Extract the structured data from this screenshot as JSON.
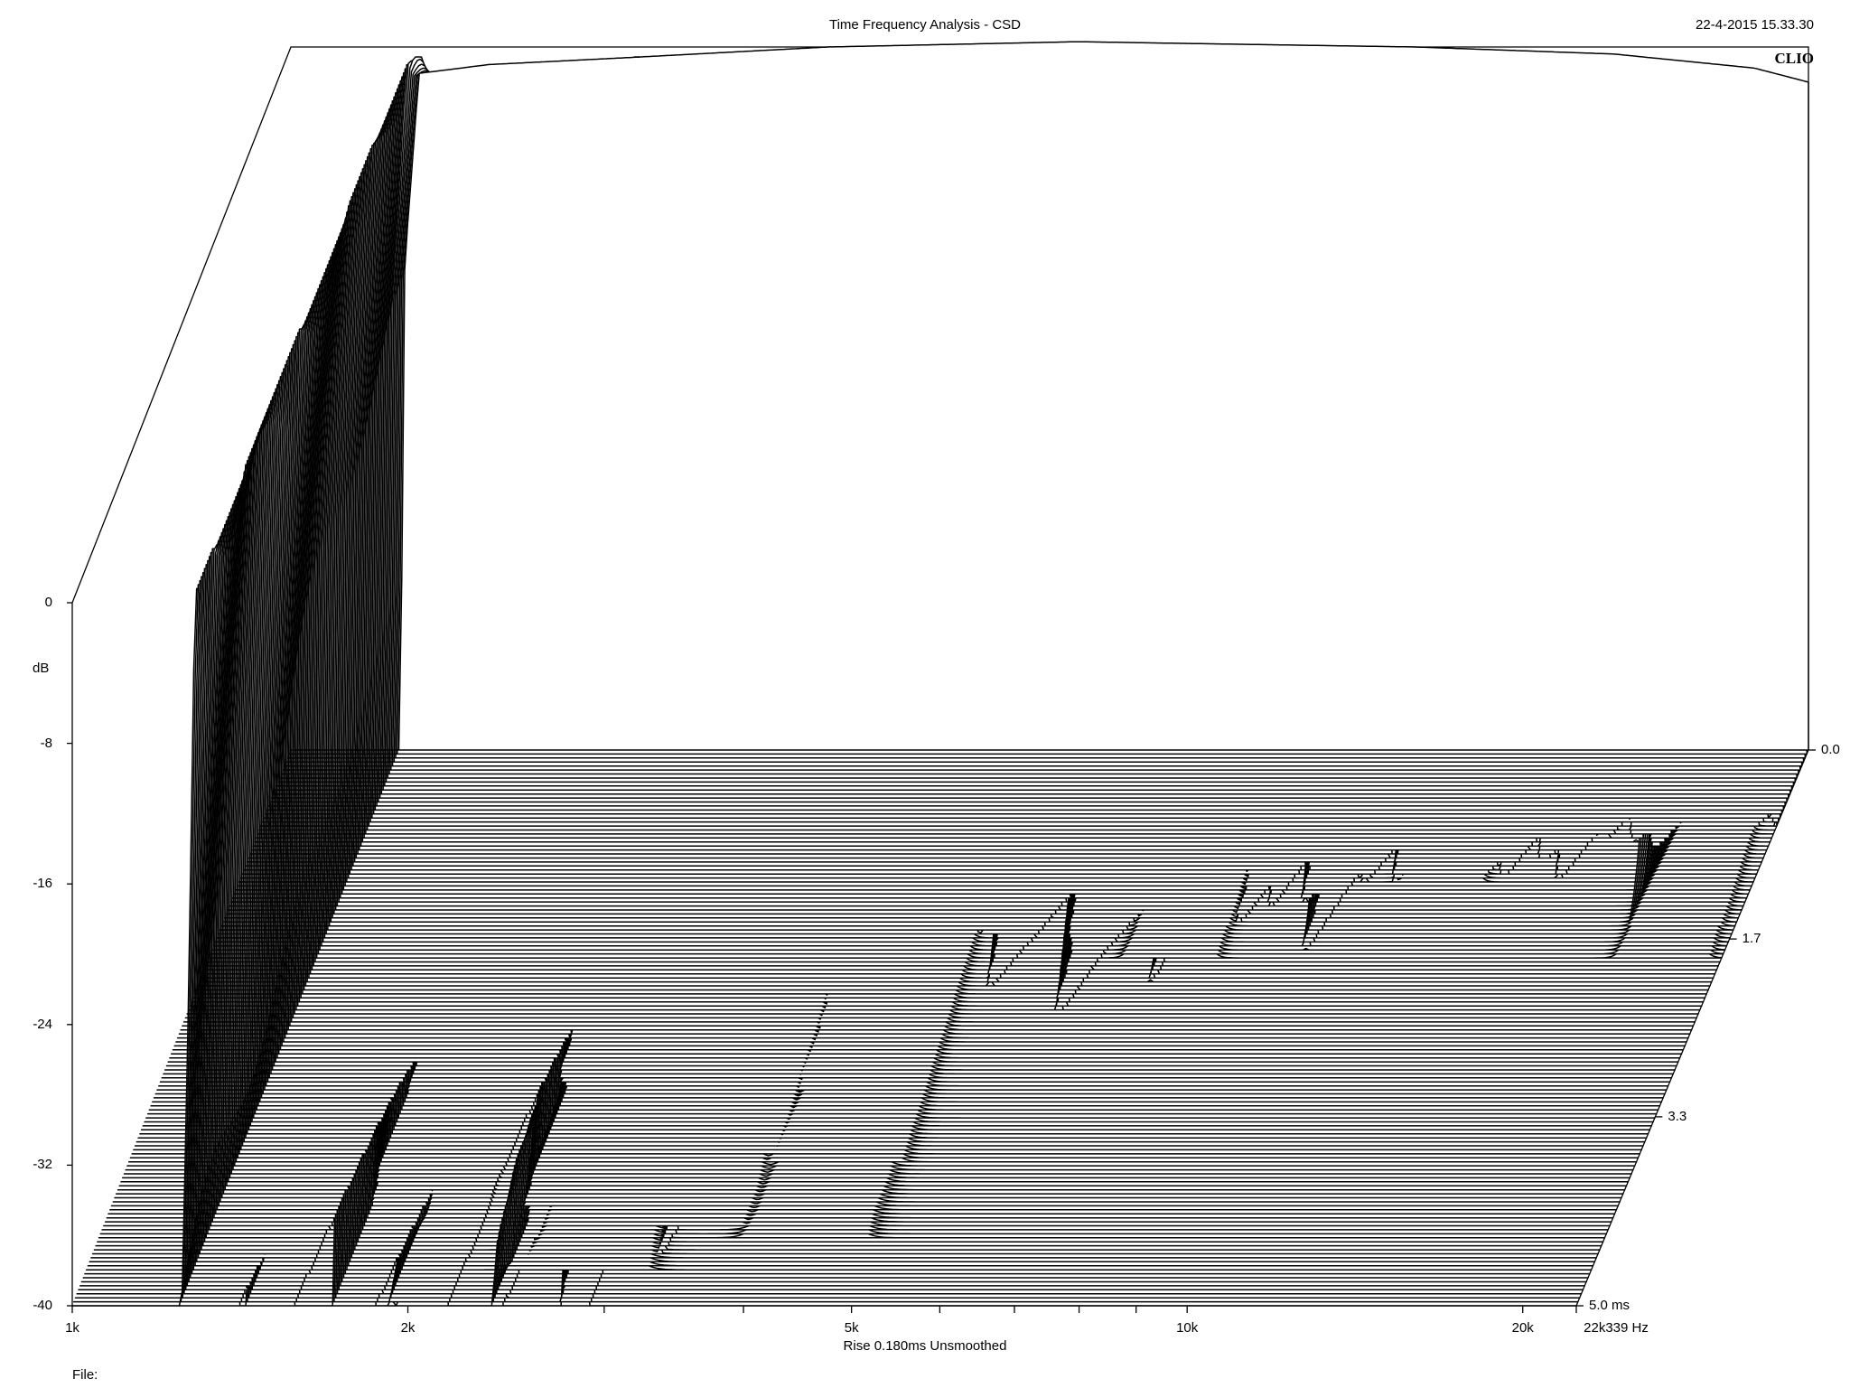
{
  "header": {
    "title": "Time Frequency Analysis - CSD",
    "timestamp": "22-4-2015 15.33.30",
    "brand": "CLIO"
  },
  "footer": {
    "x_caption": "Rise 0.180ms   Unsmoothed",
    "file_label": "File:"
  },
  "chart_data": {
    "type": "waterfall",
    "title": "Time Frequency Analysis - CSD",
    "xlabel": "Rise 0.180ms   Unsmoothed",
    "ylabel": "dB",
    "zlabel": "ms",
    "x_scale": "log",
    "xlim": [
      1000,
      22339
    ],
    "ylim": [
      -40,
      0
    ],
    "zlim": [
      0,
      5.0
    ],
    "x_ticks": [
      {
        "value": 1000,
        "label": "1k"
      },
      {
        "value": 2000,
        "label": "2k"
      },
      {
        "value": 5000,
        "label": "5k"
      },
      {
        "value": 10000,
        "label": "10k"
      },
      {
        "value": 20000,
        "label": "20k"
      },
      {
        "value": 22339,
        "label": "22k339 Hz"
      }
    ],
    "x_minor_ticks": [
      3000,
      4000,
      6000,
      7000,
      8000,
      9000
    ],
    "y_ticks": [
      0,
      -8,
      -16,
      -24,
      -32,
      -40
    ],
    "z_ticks": [
      {
        "value": 0,
        "label": "0.0"
      },
      {
        "value": 1.7,
        "label": "1.7"
      },
      {
        "value": 3.3,
        "label": "3.3"
      },
      {
        "value": 5.0,
        "label": "5.0  ms"
      }
    ],
    "slice_count": 140,
    "colors": {
      "line": "#000000",
      "fill": "#ffffff",
      "background": "#ffffff"
    },
    "response_at_t0": [
      {
        "hz": 1250,
        "db": -16
      },
      {
        "hz": 1300,
        "db": -1.5
      },
      {
        "hz": 1500,
        "db": -1.0
      },
      {
        "hz": 2000,
        "db": -0.6
      },
      {
        "hz": 3000,
        "db": 0.0
      },
      {
        "hz": 5000,
        "db": 0.3
      },
      {
        "hz": 10000,
        "db": 0.0
      },
      {
        "hz": 15000,
        "db": -0.4
      },
      {
        "hz": 20000,
        "db": -1.2
      },
      {
        "hz": 22339,
        "db": -2.0
      }
    ],
    "notes": [
      {
        "hz": 2800,
        "db": -2.0,
        "start_ms": 0.6,
        "end_ms": 4.7
      },
      {
        "hz": 3300,
        "db": -2.6,
        "start_ms": 0.6,
        "end_ms": 4.3
      },
      {
        "hz": 4300,
        "db": -2.0,
        "start_ms": 0.6,
        "end_ms": 4.4
      },
      {
        "hz": 7200,
        "db": -6.0,
        "start_ms": 0.5,
        "end_ms": 1.9
      },
      {
        "hz": 11800,
        "db": -7.0,
        "start_ms": 0.4,
        "end_ms": 1.2
      },
      {
        "hz": 19800,
        "db": -8.0,
        "start_ms": 1.0,
        "end_ms": 1.9
      }
    ]
  }
}
